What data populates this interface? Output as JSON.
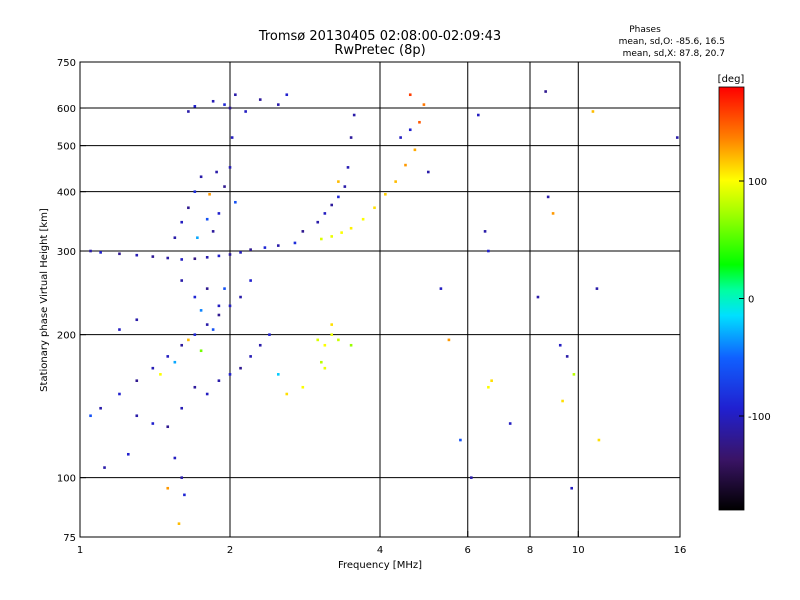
{
  "header": {
    "title_line1": "Tromsø 20130405 02:08:00-02:09:43",
    "title_line2": "RwPretec (8p)",
    "phases_heading": "Phases",
    "phases_o": "mean, sd,O: -85.6, 16.5",
    "phases_x": "mean, sd,X:  87.8, 20.7"
  },
  "colorbar": {
    "unit_label": "[deg]",
    "min": -180,
    "max": 180,
    "ticks": [
      {
        "value": 100,
        "label": "100"
      },
      {
        "value": 0,
        "label": "0"
      },
      {
        "value": -100,
        "label": "-100"
      }
    ]
  },
  "chart_data": {
    "type": "scatter",
    "title": "Tromsø 20130405 02:08:00-02:09:43",
    "subtitle": "RwPretec (8p)",
    "xlabel": "Frequency [MHz]",
    "ylabel": "Stationary phase Virtual Height [km]",
    "x_scale": "log",
    "y_scale": "log",
    "xlim": [
      1,
      16
    ],
    "ylim": [
      75,
      750
    ],
    "x_ticks": [
      {
        "value": 1,
        "label": "1"
      },
      {
        "value": 2,
        "label": "2"
      },
      {
        "value": 4,
        "label": "4"
      },
      {
        "value": 6,
        "label": "6"
      },
      {
        "value": 8,
        "label": "8"
      },
      {
        "value": 10,
        "label": "10"
      },
      {
        "value": 16,
        "label": "16"
      }
    ],
    "x_gridlines": [
      2,
      4,
      6,
      8,
      10
    ],
    "y_ticks": [
      {
        "value": 75,
        "label": "75"
      },
      {
        "value": 100,
        "label": "100"
      },
      {
        "value": 200,
        "label": "200"
      },
      {
        "value": 300,
        "label": "300"
      },
      {
        "value": 400,
        "label": "400"
      },
      {
        "value": 500,
        "label": "500"
      },
      {
        "value": 600,
        "label": "600"
      },
      {
        "value": 750,
        "label": "750"
      }
    ],
    "y_gridlines": [
      100,
      200,
      300,
      400,
      500,
      600
    ],
    "color_variable": "phase [deg]",
    "points": [
      [
        1.05,
        300,
        -110
      ],
      [
        1.1,
        298,
        -95
      ],
      [
        1.2,
        296,
        -120
      ],
      [
        1.3,
        294,
        -105
      ],
      [
        1.4,
        292,
        -118
      ],
      [
        1.5,
        290,
        -112
      ],
      [
        1.6,
        288,
        -100
      ],
      [
        1.7,
        289,
        -125
      ],
      [
        1.8,
        291,
        -108
      ],
      [
        1.9,
        293,
        -96
      ],
      [
        2.0,
        295,
        -115
      ],
      [
        2.1,
        298,
        -102
      ],
      [
        2.2,
        302,
        -120
      ],
      [
        2.35,
        305,
        -90
      ],
      [
        2.5,
        308,
        -110
      ],
      [
        2.7,
        312,
        -85
      ],
      [
        1.55,
        320,
        -110
      ],
      [
        1.6,
        345,
        -100
      ],
      [
        1.65,
        370,
        -120
      ],
      [
        1.7,
        400,
        -85
      ],
      [
        1.75,
        430,
        -110
      ],
      [
        1.8,
        350,
        -60
      ],
      [
        1.85,
        330,
        -115
      ],
      [
        1.9,
        360,
        -95
      ],
      [
        1.95,
        410,
        -120
      ],
      [
        2.0,
        450,
        -105
      ],
      [
        2.02,
        520,
        -100
      ],
      [
        2.05,
        380,
        -60
      ],
      [
        1.72,
        320,
        -30
      ],
      [
        1.82,
        395,
        130
      ],
      [
        1.88,
        440,
        -110
      ],
      [
        1.65,
        590,
        -110
      ],
      [
        1.7,
        605,
        -95
      ],
      [
        1.85,
        620,
        -105
      ],
      [
        1.95,
        610,
        -90
      ],
      [
        2.0,
        600,
        -120
      ],
      [
        2.05,
        640,
        -110
      ],
      [
        2.15,
        590,
        -100
      ],
      [
        2.3,
        625,
        -115
      ],
      [
        2.5,
        610,
        -110
      ],
      [
        2.6,
        640,
        -95
      ],
      [
        2.8,
        330,
        -120
      ],
      [
        3.0,
        345,
        -110
      ],
      [
        3.1,
        360,
        -100
      ],
      [
        3.2,
        375,
        -115
      ],
      [
        3.3,
        390,
        -90
      ],
      [
        3.4,
        410,
        -110
      ],
      [
        3.45,
        450,
        -105
      ],
      [
        3.5,
        520,
        -115
      ],
      [
        3.55,
        580,
        -110
      ],
      [
        3.3,
        420,
        120
      ],
      [
        3.05,
        318,
        90
      ],
      [
        3.2,
        322,
        95
      ],
      [
        3.35,
        328,
        100
      ],
      [
        3.5,
        335,
        105
      ],
      [
        3.7,
        350,
        100
      ],
      [
        3.9,
        370,
        110
      ],
      [
        4.1,
        395,
        115
      ],
      [
        4.3,
        420,
        120
      ],
      [
        4.5,
        455,
        130
      ],
      [
        4.7,
        490,
        125
      ],
      [
        4.8,
        560,
        150
      ],
      [
        4.6,
        640,
        160
      ],
      [
        4.9,
        610,
        140
      ],
      [
        4.4,
        520,
        -100
      ],
      [
        4.6,
        540,
        -95
      ],
      [
        1.1,
        140,
        -110
      ],
      [
        1.2,
        150,
        -95
      ],
      [
        1.3,
        160,
        -120
      ],
      [
        1.4,
        170,
        -105
      ],
      [
        1.5,
        180,
        -100
      ],
      [
        1.6,
        190,
        -115
      ],
      [
        1.7,
        200,
        -90
      ],
      [
        1.8,
        210,
        -110
      ],
      [
        1.9,
        220,
        -120
      ],
      [
        2.0,
        230,
        -100
      ],
      [
        1.45,
        165,
        100
      ],
      [
        1.55,
        175,
        -30
      ],
      [
        1.65,
        195,
        120
      ],
      [
        1.75,
        185,
        60
      ],
      [
        1.85,
        205,
        -60
      ],
      [
        1.3,
        135,
        -110
      ],
      [
        1.4,
        130,
        -95
      ],
      [
        1.5,
        128,
        -120
      ],
      [
        1.6,
        140,
        -105
      ],
      [
        1.7,
        155,
        -115
      ],
      [
        1.8,
        150,
        -100
      ],
      [
        1.9,
        160,
        -110
      ],
      [
        2.0,
        165,
        -95
      ],
      [
        2.1,
        170,
        -120
      ],
      [
        2.2,
        180,
        -105
      ],
      [
        2.3,
        190,
        -110
      ],
      [
        2.4,
        200,
        -95
      ],
      [
        1.55,
        110,
        -100
      ],
      [
        1.6,
        100,
        -110
      ],
      [
        1.62,
        92,
        -90
      ],
      [
        1.5,
        95,
        130
      ],
      [
        1.58,
        80,
        120
      ],
      [
        1.12,
        105,
        -110
      ],
      [
        1.25,
        112,
        -95
      ],
      [
        1.05,
        135,
        -60
      ],
      [
        1.2,
        205,
        -100
      ],
      [
        1.3,
        215,
        -110
      ],
      [
        1.6,
        260,
        -110
      ],
      [
        1.7,
        240,
        -90
      ],
      [
        1.8,
        250,
        -120
      ],
      [
        1.9,
        230,
        -100
      ],
      [
        2.1,
        240,
        -110
      ],
      [
        2.2,
        260,
        -95
      ],
      [
        1.75,
        225,
        -40
      ],
      [
        1.95,
        250,
        -60
      ],
      [
        3.0,
        195,
        90
      ],
      [
        3.1,
        190,
        100
      ],
      [
        3.2,
        200,
        95
      ],
      [
        3.3,
        195,
        85
      ],
      [
        3.05,
        175,
        80
      ],
      [
        3.1,
        170,
        95
      ],
      [
        3.2,
        210,
        110
      ],
      [
        3.5,
        190,
        70
      ],
      [
        2.6,
        150,
        110
      ],
      [
        2.8,
        155,
        100
      ],
      [
        2.5,
        165,
        -20
      ],
      [
        5.0,
        440,
        -110
      ],
      [
        5.3,
        250,
        -100
      ],
      [
        5.5,
        195,
        130
      ],
      [
        6.1,
        100,
        -110
      ],
      [
        6.3,
        580,
        -100
      ],
      [
        6.5,
        330,
        -110
      ],
      [
        6.6,
        300,
        -95
      ],
      [
        6.7,
        160,
        110
      ],
      [
        6.6,
        155,
        100
      ],
      [
        7.3,
        130,
        -100
      ],
      [
        8.3,
        240,
        -110
      ],
      [
        8.6,
        650,
        -120
      ],
      [
        8.7,
        390,
        -110
      ],
      [
        9.2,
        190,
        -100
      ],
      [
        9.3,
        145,
        110
      ],
      [
        9.5,
        180,
        -110
      ],
      [
        9.7,
        95,
        -100
      ],
      [
        9.8,
        165,
        80
      ],
      [
        10.7,
        590,
        120
      ],
      [
        10.9,
        250,
        -110
      ],
      [
        11.0,
        120,
        110
      ],
      [
        15.8,
        520,
        -110
      ],
      [
        8.9,
        360,
        130
      ],
      [
        5.8,
        120,
        -60
      ]
    ]
  }
}
